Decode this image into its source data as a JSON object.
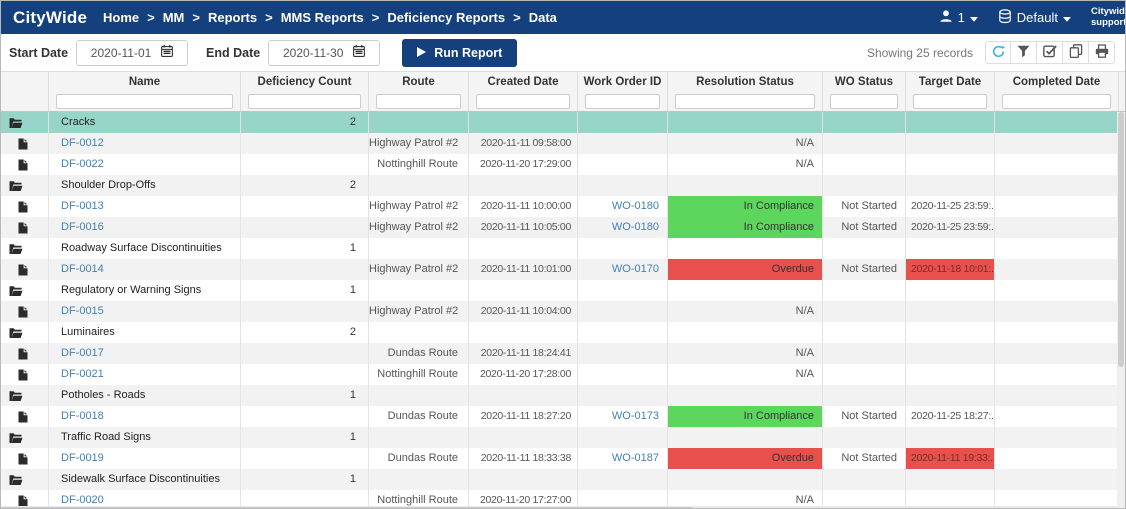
{
  "navbar": {
    "logo": "CityWide",
    "breadcrumb": [
      "Home",
      "MM",
      "Reports",
      "MMS Reports",
      "Deficiency Reports",
      "Data"
    ],
    "breadcrumb_separator": ">",
    "user_count": "1",
    "environment_label": "Default",
    "support_label": "Citywide support"
  },
  "toolbar": {
    "start_date_label": "Start Date",
    "start_date_value": "2020-11-01",
    "end_date_label": "End Date",
    "end_date_value": "2020-11-30",
    "run_report_label": "Run Report",
    "records_text": "Showing 25 records",
    "action_icons": [
      "refresh-icon",
      "filter-icon",
      "column-check-icon",
      "copy-icon",
      "print-icon"
    ]
  },
  "colors": {
    "navbar_navy": "#14417e",
    "selected_teal": "#97d5c8",
    "compliance_green": "#5cd65c",
    "overdue_red": "#e8504d",
    "link_blue": "#4381b1"
  },
  "table": {
    "columns": [
      {
        "key": "icon",
        "label": "",
        "width": 48,
        "filter": false
      },
      {
        "key": "name",
        "label": "Name",
        "width": 192,
        "filter": true
      },
      {
        "key": "count",
        "label": "Deficiency Count",
        "width": 128,
        "filter": true
      },
      {
        "key": "route",
        "label": "Route",
        "width": 100,
        "filter": true
      },
      {
        "key": "created",
        "label": "Created Date",
        "width": 109,
        "filter": true
      },
      {
        "key": "work_order",
        "label": "Work Order ID",
        "width": 90,
        "filter": true
      },
      {
        "key": "resolution",
        "label": "Resolution Status",
        "width": 155,
        "filter": true
      },
      {
        "key": "wo_status",
        "label": "WO Status",
        "width": 83,
        "filter": true
      },
      {
        "key": "target_date",
        "label": "Target Date",
        "width": 89,
        "filter": true
      },
      {
        "key": "completed",
        "label": "Completed Date",
        "width": 124,
        "filter": true
      }
    ],
    "rows": [
      {
        "type": "group",
        "name": "Cracks",
        "count": "2",
        "selected": true
      },
      {
        "type": "item",
        "name": "DF-0012",
        "route": "Highway Patrol #2",
        "created": "2020-11-11 09:58:00",
        "work_order": "",
        "resolution": "N/A",
        "resolution_state": "plain",
        "wo_status": "",
        "target_date": "",
        "target_state": "plain",
        "completed": ""
      },
      {
        "type": "item",
        "name": "DF-0022",
        "route": "Nottinghill Route",
        "created": "2020-11-20 17:29:00",
        "work_order": "",
        "resolution": "N/A",
        "resolution_state": "plain",
        "wo_status": "",
        "target_date": "",
        "target_state": "plain",
        "completed": ""
      },
      {
        "type": "group",
        "name": "Shoulder Drop-Offs",
        "count": "2"
      },
      {
        "type": "item",
        "name": "DF-0013",
        "route": "Highway Patrol #2",
        "created": "2020-11-11 10:00:00",
        "work_order": "WO-0180",
        "resolution": "In Compliance",
        "resolution_state": "green",
        "wo_status": "Not Started",
        "target_date": "2020-11-25 23:59:...",
        "target_state": "plain",
        "completed": ""
      },
      {
        "type": "item",
        "name": "DF-0016",
        "route": "Highway Patrol #2",
        "created": "2020-11-11 10:05:00",
        "work_order": "WO-0180",
        "resolution": "In Compliance",
        "resolution_state": "green",
        "wo_status": "Not Started",
        "target_date": "2020-11-25 23:59:...",
        "target_state": "plain",
        "completed": ""
      },
      {
        "type": "group",
        "name": "Roadway Surface Discontinuities",
        "count": "1"
      },
      {
        "type": "item",
        "name": "DF-0014",
        "route": "Highway Patrol #2",
        "created": "2020-11-11 10:01:00",
        "work_order": "WO-0170",
        "resolution": "Overdue",
        "resolution_state": "red",
        "wo_status": "Not Started",
        "target_date": "2020-11-18 10:01:...",
        "target_state": "red",
        "completed": ""
      },
      {
        "type": "group",
        "name": "Regulatory or Warning Signs",
        "count": "1"
      },
      {
        "type": "item",
        "name": "DF-0015",
        "route": "Highway Patrol #2",
        "created": "2020-11-11 10:04:00",
        "work_order": "",
        "resolution": "N/A",
        "resolution_state": "plain",
        "wo_status": "",
        "target_date": "",
        "target_state": "plain",
        "completed": ""
      },
      {
        "type": "group",
        "name": "Luminaires",
        "count": "2"
      },
      {
        "type": "item",
        "name": "DF-0017",
        "route": "Dundas Route",
        "created": "2020-11-11 18:24:41",
        "work_order": "",
        "resolution": "N/A",
        "resolution_state": "plain",
        "wo_status": "",
        "target_date": "",
        "target_state": "plain",
        "completed": ""
      },
      {
        "type": "item",
        "name": "DF-0021",
        "route": "Nottinghill Route",
        "created": "2020-11-20 17:28:00",
        "work_order": "",
        "resolution": "N/A",
        "resolution_state": "plain",
        "wo_status": "",
        "target_date": "",
        "target_state": "plain",
        "completed": ""
      },
      {
        "type": "group",
        "name": "Potholes - Roads",
        "count": "1"
      },
      {
        "type": "item",
        "name": "DF-0018",
        "route": "Dundas Route",
        "created": "2020-11-11 18:27:20",
        "work_order": "WO-0173",
        "resolution": "In Compliance",
        "resolution_state": "green",
        "wo_status": "Not Started",
        "target_date": "2020-11-25 18:27:...",
        "target_state": "plain",
        "completed": ""
      },
      {
        "type": "group",
        "name": "Traffic Road Signs",
        "count": "1"
      },
      {
        "type": "item",
        "name": "DF-0019",
        "route": "Dundas Route",
        "created": "2020-11-11 18:33:38",
        "work_order": "WO-0187",
        "resolution": "Overdue",
        "resolution_state": "red",
        "wo_status": "Not Started",
        "target_date": "2020-11-11 19:33:...",
        "target_state": "red",
        "completed": ""
      },
      {
        "type": "group",
        "name": "Sidewalk Surface Discontinuities",
        "count": "1"
      },
      {
        "type": "item",
        "name": "DF-0020",
        "route": "Nottinghill Route",
        "created": "2020-11-20 17:27:00",
        "work_order": "",
        "resolution": "N/A",
        "resolution_state": "plain",
        "wo_status": "",
        "target_date": "",
        "target_state": "plain",
        "completed": ""
      }
    ]
  }
}
